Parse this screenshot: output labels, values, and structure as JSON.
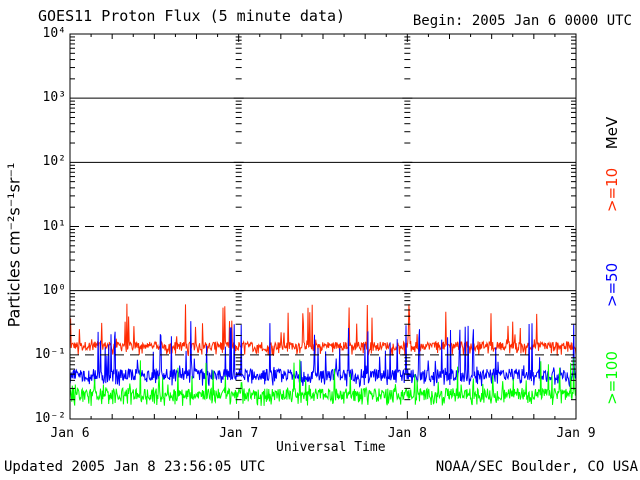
{
  "header": {
    "title": "GOES11 Proton Flux (5 minute data)",
    "begin": "Begin: 2005 Jan 6 0000 UTC"
  },
  "footer": {
    "updated": "Updated 2005 Jan  8 23:56:05 UTC",
    "credit": "NOAA/SEC Boulder, CO USA"
  },
  "chart_data": {
    "type": "line",
    "xlabel": "Universal Time",
    "ylabel": "Particles cm⁻²s⁻¹sr⁻¹",
    "y_scale": "log",
    "ylim": [
      0.01,
      10000
    ],
    "y_tick_labels": [
      "10⁻²",
      "10⁻¹",
      "10⁰",
      "10¹",
      "10²",
      "10³",
      "10⁴"
    ],
    "x_tick_labels": [
      "Jan 6",
      "Jan 7",
      "Jan 8",
      "Jan 9"
    ],
    "xlim": [
      "2005-01-06 00:00",
      "2005-01-09 00:00"
    ],
    "units_label": "MeV",
    "grid": "horizontal decade lines; dashed at 10¹ and 10⁻¹",
    "legend": "right side, vertical",
    "series": [
      {
        "name": ">=10",
        "color": "#ff2a00",
        "level": [
          0.12,
          0.16
        ],
        "approx_range": [
          0.08,
          0.65
        ]
      },
      {
        "name": ">=50",
        "color": "#0000ff",
        "level": [
          0.04,
          0.06
        ],
        "approx_range": [
          0.03,
          0.35
        ]
      },
      {
        "name": ">=100",
        "color": "#00ff00",
        "level": [
          0.02,
          0.03
        ],
        "approx_range": [
          0.015,
          0.09
        ]
      }
    ]
  }
}
